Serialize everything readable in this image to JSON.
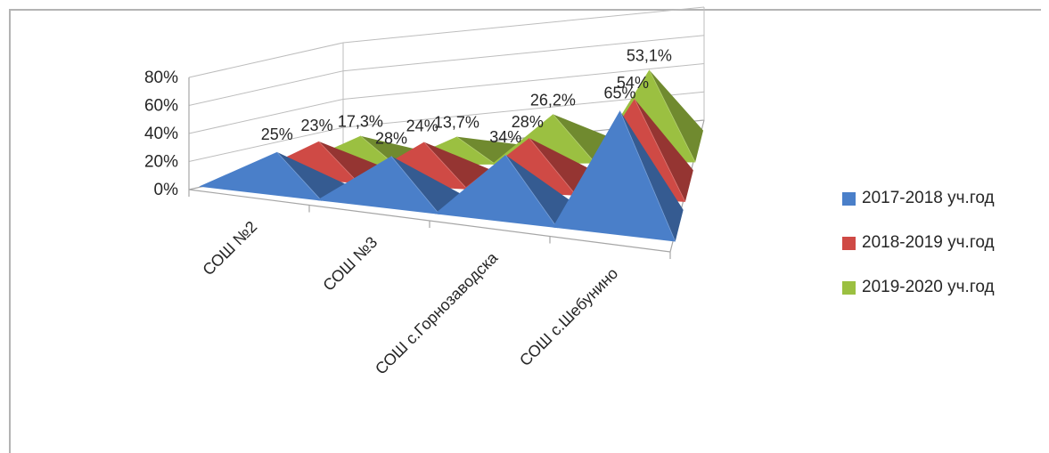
{
  "chart_data": {
    "type": "bar",
    "variant": "3d-pyramid",
    "categories": [
      "СОШ №2",
      "СОШ №3",
      "СОШ с.Горнозаводска",
      "СОШ с.Шебунино"
    ],
    "series": [
      {
        "name": "2017-2018 уч.год",
        "color": "#4a7fc9",
        "values": [
          25,
          28,
          34,
          65
        ],
        "labels": [
          "25%",
          "28%",
          "34%",
          "65%"
        ]
      },
      {
        "name": "2018-2019 уч.год",
        "color": "#cf4a45",
        "values": [
          23,
          24,
          28,
          54
        ],
        "labels": [
          "23%",
          "24%",
          "28%",
          "54%"
        ]
      },
      {
        "name": "2019-2020 уч.год",
        "color": "#9bc041",
        "values": [
          17.3,
          13.7,
          26.2,
          53.1
        ],
        "labels": [
          "17,3%",
          "13,7%",
          "26,2%",
          "53,1%"
        ]
      }
    ],
    "y_ticks": [
      "0%",
      "20%",
      "40%",
      "60%",
      "80%"
    ],
    "ylim": [
      0,
      80
    ],
    "grid": true,
    "legend_position": "right"
  }
}
